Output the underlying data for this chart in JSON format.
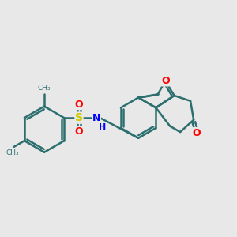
{
  "background_color": "#e8e8e8",
  "bond_color": "#2d6e6e",
  "atom_colors": {
    "O": "#ff0000",
    "N": "#0000ff",
    "S": "#cccc00",
    "C": "#2d6e6e",
    "H": "#2d6e6e"
  },
  "line_width": 1.8,
  "figsize": [
    3.0,
    3.0
  ],
  "dpi": 100
}
